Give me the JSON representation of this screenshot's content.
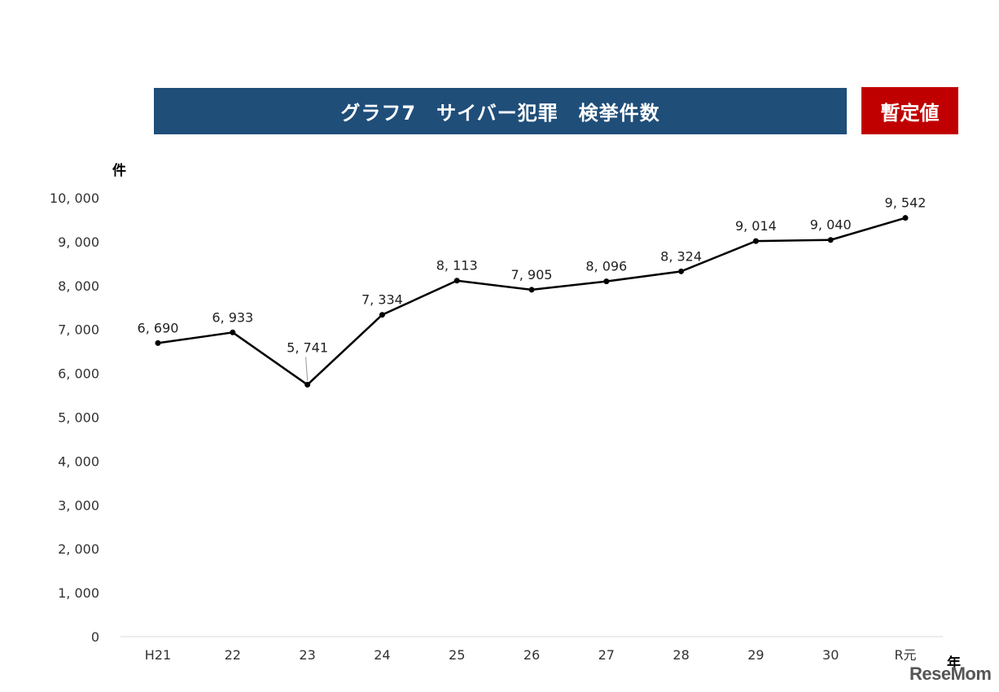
{
  "header": {
    "title": "グラフ7　サイバー犯罪　検挙件数",
    "badge": "暫定値"
  },
  "units": {
    "y": "件",
    "x": "年"
  },
  "watermark": "ReseMom",
  "chart_data": {
    "type": "line",
    "title": "グラフ7　サイバー犯罪　検挙件数",
    "categories": [
      "H21",
      "22",
      "23",
      "24",
      "25",
      "26",
      "27",
      "28",
      "29",
      "30",
      "R元"
    ],
    "series": [
      {
        "values": [
          6690,
          6933,
          5741,
          7334,
          8113,
          7905,
          8096,
          8324,
          9014,
          9040,
          9542
        ]
      }
    ],
    "data_labels": [
      "6, 690",
      "6, 933",
      "5, 741",
      "7, 334",
      "8, 113",
      "7, 905",
      "8, 096",
      "8, 324",
      "9, 014",
      "9, 040",
      "9, 542"
    ],
    "yticks": [
      0,
      1000,
      2000,
      3000,
      4000,
      5000,
      6000,
      7000,
      8000,
      9000,
      10000
    ],
    "ytick_labels": [
      "0",
      "1, 000",
      "2, 000",
      "3, 000",
      "4, 000",
      "5, 000",
      "6, 000",
      "7, 000",
      "8, 000",
      "9, 000",
      "10, 000"
    ],
    "ylim": [
      0,
      10000
    ],
    "ylabel": "件",
    "xlabel": "年",
    "grid": false,
    "line_color": "#000000"
  }
}
